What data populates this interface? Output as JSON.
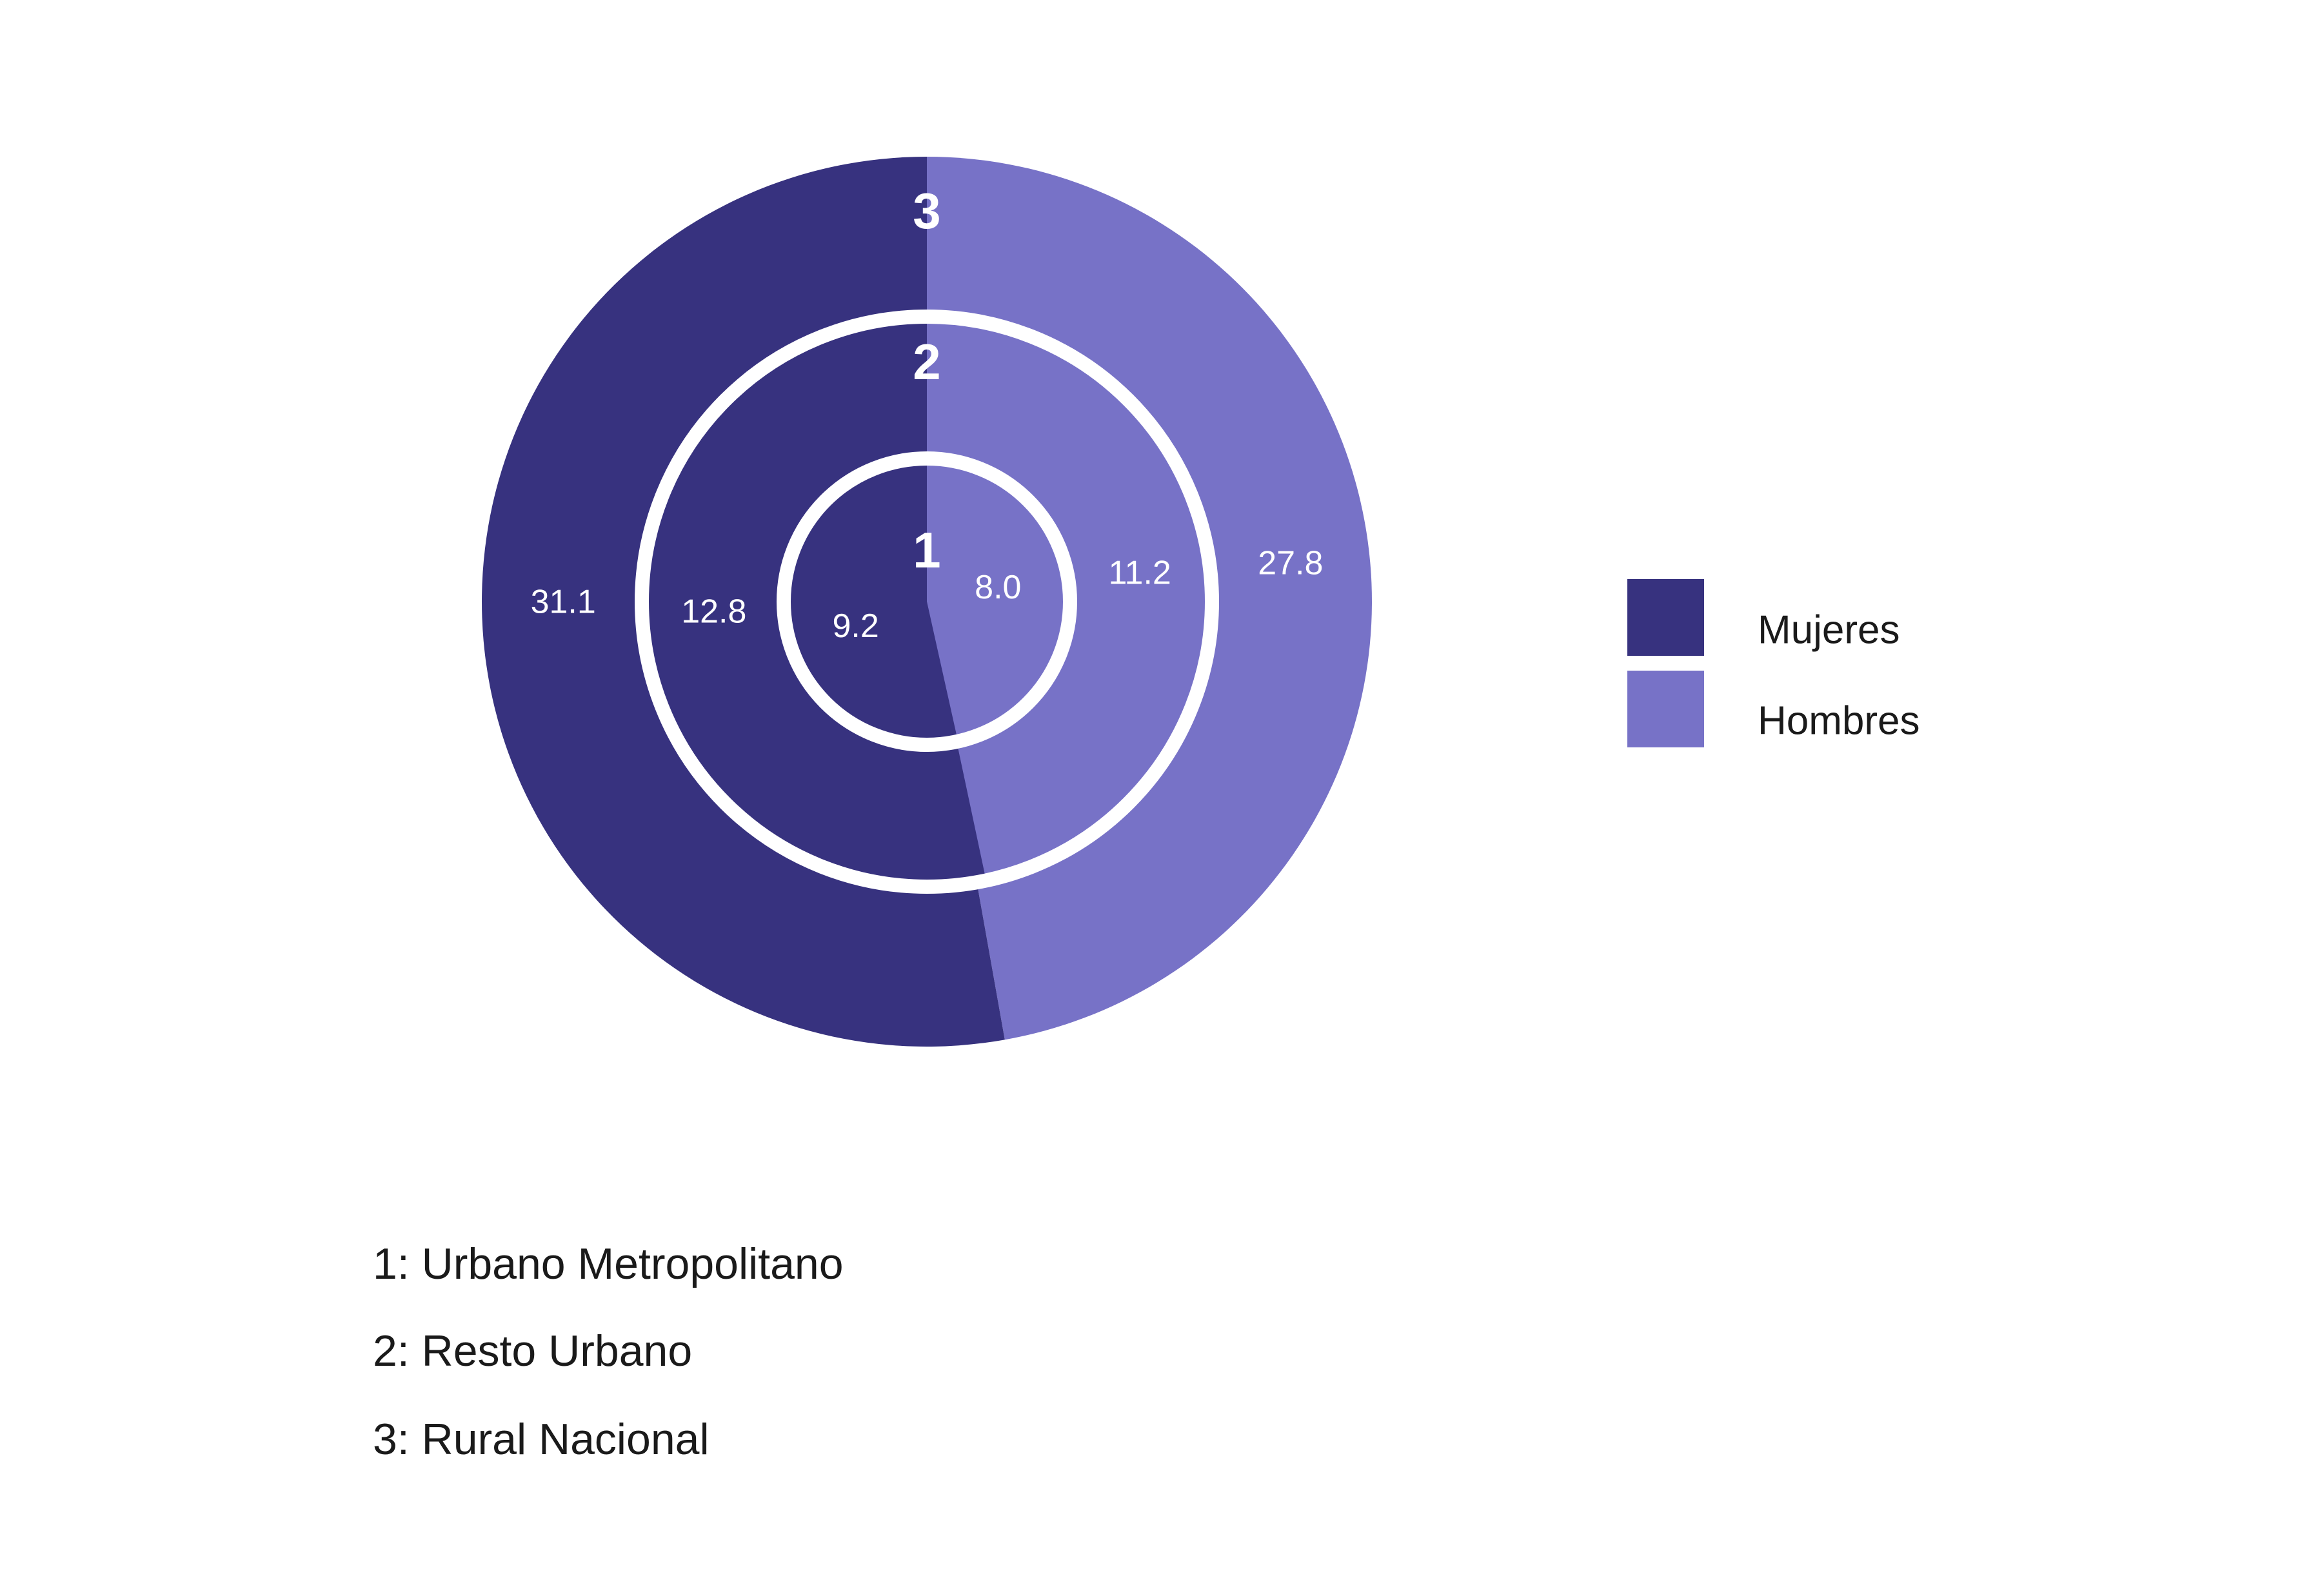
{
  "chart_data": {
    "type": "pie",
    "subtype": "nested-donut",
    "colors": {
      "Mujeres": "#37327F",
      "Hombres": "#7772C7",
      "separator": "#ffffff"
    },
    "legend": {
      "placement": "right",
      "entries": [
        "Mujeres",
        "Hombres"
      ]
    },
    "rings": [
      {
        "id": "1",
        "name": "Urbano Metropolitano",
        "Mujeres": 9.2,
        "Hombres": 8.0
      },
      {
        "id": "2",
        "name": "Resto Urbano",
        "Mujeres": 12.8,
        "Hombres": 11.2
      },
      {
        "id": "3",
        "name": "Rural Nacional",
        "Mujeres": 31.1,
        "Hombres": 27.8
      }
    ],
    "key": [
      "1: Urbano Metropolitano",
      "2: Resto Urbano",
      "3: Rural Nacional"
    ]
  }
}
